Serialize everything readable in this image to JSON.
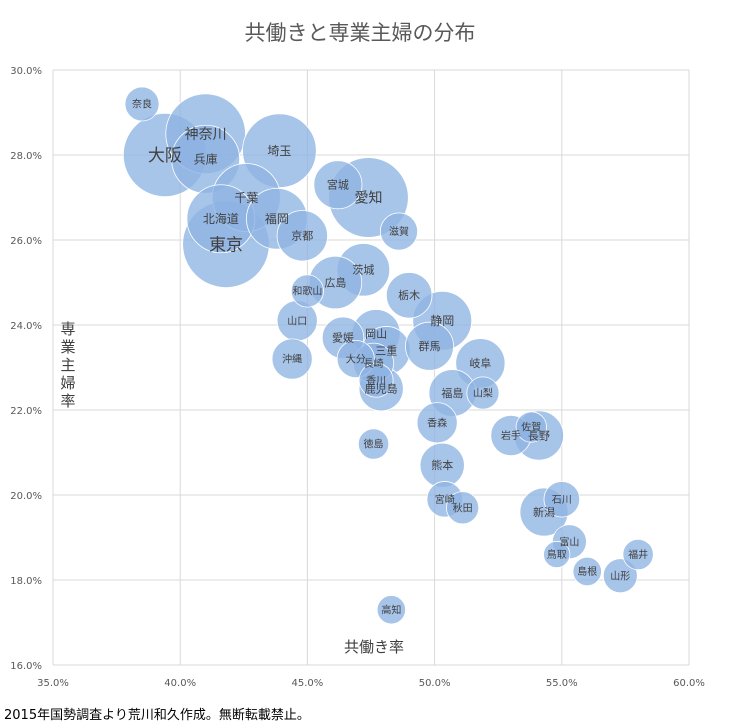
{
  "chart_data": {
    "type": "scatter",
    "title": "共働きと専業主婦の分布",
    "xlabel": "共働き率",
    "ylabel": "専業主婦率",
    "xlim": [
      0.35,
      0.6
    ],
    "ylim": [
      0.16,
      0.3
    ],
    "x_ticks": [
      "35.0%",
      "40.0%",
      "45.0%",
      "50.0%",
      "55.0%",
      "60.0%"
    ],
    "y_ticks": [
      "30.0%",
      "28.0%",
      "26.0%",
      "24.0%",
      "22.0%",
      "20.0%",
      "18.0%",
      "16.0%"
    ],
    "grid": true,
    "bubble_color": "#8eb4e3",
    "points": [
      {
        "label": "奈良",
        "x": 0.385,
        "y": 0.292,
        "size": 1.0
      },
      {
        "label": "神奈川",
        "x": 0.41,
        "y": 0.285,
        "size": 5.5
      },
      {
        "label": "大阪",
        "x": 0.394,
        "y": 0.28,
        "size": 6.0
      },
      {
        "label": "兵庫",
        "x": 0.41,
        "y": 0.279,
        "size": 4.0
      },
      {
        "label": "埼玉",
        "x": 0.439,
        "y": 0.281,
        "size": 4.7
      },
      {
        "label": "宮城",
        "x": 0.462,
        "y": 0.273,
        "size": 2.0
      },
      {
        "label": "愛知",
        "x": 0.474,
        "y": 0.27,
        "size": 5.5
      },
      {
        "label": "千葉",
        "x": 0.426,
        "y": 0.27,
        "size": 4.0
      },
      {
        "label": "北海道",
        "x": 0.416,
        "y": 0.265,
        "size": 4.0
      },
      {
        "label": "福岡",
        "x": 0.438,
        "y": 0.265,
        "size": 3.2
      },
      {
        "label": "京都",
        "x": 0.448,
        "y": 0.261,
        "size": 2.2
      },
      {
        "label": "滋賀",
        "x": 0.486,
        "y": 0.262,
        "size": 1.2
      },
      {
        "label": "東京",
        "x": 0.418,
        "y": 0.259,
        "size": 6.5
      },
      {
        "label": "茨城",
        "x": 0.472,
        "y": 0.253,
        "size": 2.4
      },
      {
        "label": "広島",
        "x": 0.461,
        "y": 0.25,
        "size": 2.4
      },
      {
        "label": "和歌山",
        "x": 0.45,
        "y": 0.248,
        "size": 0.9
      },
      {
        "label": "栃木",
        "x": 0.49,
        "y": 0.247,
        "size": 1.8
      },
      {
        "label": "静岡",
        "x": 0.503,
        "y": 0.241,
        "size": 3.0
      },
      {
        "label": "山口",
        "x": 0.446,
        "y": 0.241,
        "size": 1.4
      },
      {
        "label": "愛媛",
        "x": 0.464,
        "y": 0.237,
        "size": 1.5
      },
      {
        "label": "岡山",
        "x": 0.477,
        "y": 0.238,
        "size": 2.0
      },
      {
        "label": "三重",
        "x": 0.481,
        "y": 0.234,
        "size": 2.0
      },
      {
        "label": "群馬",
        "x": 0.498,
        "y": 0.235,
        "size": 2.0
      },
      {
        "label": "岐阜",
        "x": 0.518,
        "y": 0.231,
        "size": 2.1
      },
      {
        "label": "沖縄",
        "x": 0.444,
        "y": 0.232,
        "size": 1.4
      },
      {
        "label": "大分",
        "x": 0.469,
        "y": 0.232,
        "size": 1.2
      },
      {
        "label": "長崎",
        "x": 0.476,
        "y": 0.231,
        "size": 1.4
      },
      {
        "label": "香川",
        "x": 0.477,
        "y": 0.227,
        "size": 1.0
      },
      {
        "label": "福島",
        "x": 0.507,
        "y": 0.224,
        "size": 1.9
      },
      {
        "label": "山梨",
        "x": 0.519,
        "y": 0.224,
        "size": 0.9
      },
      {
        "label": "鹿児島",
        "x": 0.479,
        "y": 0.225,
        "size": 1.7
      },
      {
        "label": "香森",
        "x": 0.501,
        "y": 0.217,
        "size": 1.4
      },
      {
        "label": "佐賀",
        "x": 0.538,
        "y": 0.216,
        "size": 0.8
      },
      {
        "label": "岩手",
        "x": 0.53,
        "y": 0.214,
        "size": 1.4
      },
      {
        "label": "長野",
        "x": 0.541,
        "y": 0.214,
        "size": 2.1
      },
      {
        "label": "徳島",
        "x": 0.476,
        "y": 0.212,
        "size": 0.8
      },
      {
        "label": "熊本",
        "x": 0.503,
        "y": 0.207,
        "size": 1.7
      },
      {
        "label": "宮崎",
        "x": 0.504,
        "y": 0.199,
        "size": 1.1
      },
      {
        "label": "石川",
        "x": 0.55,
        "y": 0.199,
        "size": 1.1
      },
      {
        "label": "秋田",
        "x": 0.511,
        "y": 0.197,
        "size": 0.9
      },
      {
        "label": "新潟",
        "x": 0.543,
        "y": 0.196,
        "size": 2.0
      },
      {
        "label": "富山",
        "x": 0.553,
        "y": 0.189,
        "size": 1.0
      },
      {
        "label": "鳥取",
        "x": 0.548,
        "y": 0.186,
        "size": 0.6
      },
      {
        "label": "福井",
        "x": 0.58,
        "y": 0.186,
        "size": 0.8
      },
      {
        "label": "島根",
        "x": 0.56,
        "y": 0.182,
        "size": 0.7
      },
      {
        "label": "山形",
        "x": 0.573,
        "y": 0.181,
        "size": 1.0
      },
      {
        "label": "高知",
        "x": 0.483,
        "y": 0.173,
        "size": 0.7
      }
    ]
  },
  "source_note": "2015年国勢調査より荒川和久作成。無断転載禁止。"
}
